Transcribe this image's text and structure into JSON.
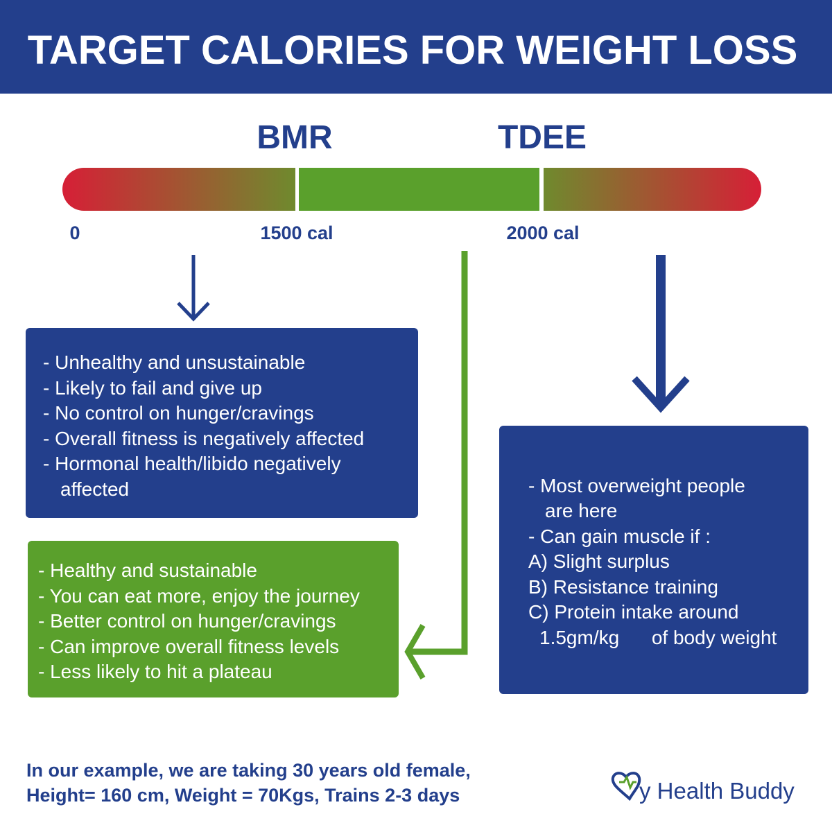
{
  "header": {
    "title": "TARGET CALORIES FOR WEIGHT LOSS"
  },
  "scale": {
    "labels": [
      "BMR",
      "TDEE"
    ],
    "ticks": [
      "0",
      "1500 cal",
      "2000 cal"
    ]
  },
  "boxes": [
    {
      "lines": [
        "- Unhealthy and unsustainable",
        "- Likely to fail and give up",
        "- No control on hunger/cravings",
        "- Overall fitness is negatively affected",
        "- Hormonal health/libido negatively",
        "affected"
      ]
    },
    {
      "lines": [
        "- Healthy and sustainable",
        "- You can eat more, enjoy the journey",
        "- Better control on hunger/cravings",
        "- Can improve overall fitness levels",
        "- Less likely to hit a plateau"
      ]
    },
    {
      "lines": [
        "- Most overweight people",
        "are here",
        "- Can gain muscle if :",
        "A) Slight surplus",
        "B) Resistance training",
        "C) Protein intake around",
        "1.5gm/kg      of body weight"
      ]
    }
  ],
  "footer": {
    "lines": [
      "In our example, we are taking 30 years old female,",
      "Height= 160 cm, Weight = 70Kgs, Trains 2-3 days"
    ]
  },
  "logo": {
    "text": "y Health Buddy"
  }
}
